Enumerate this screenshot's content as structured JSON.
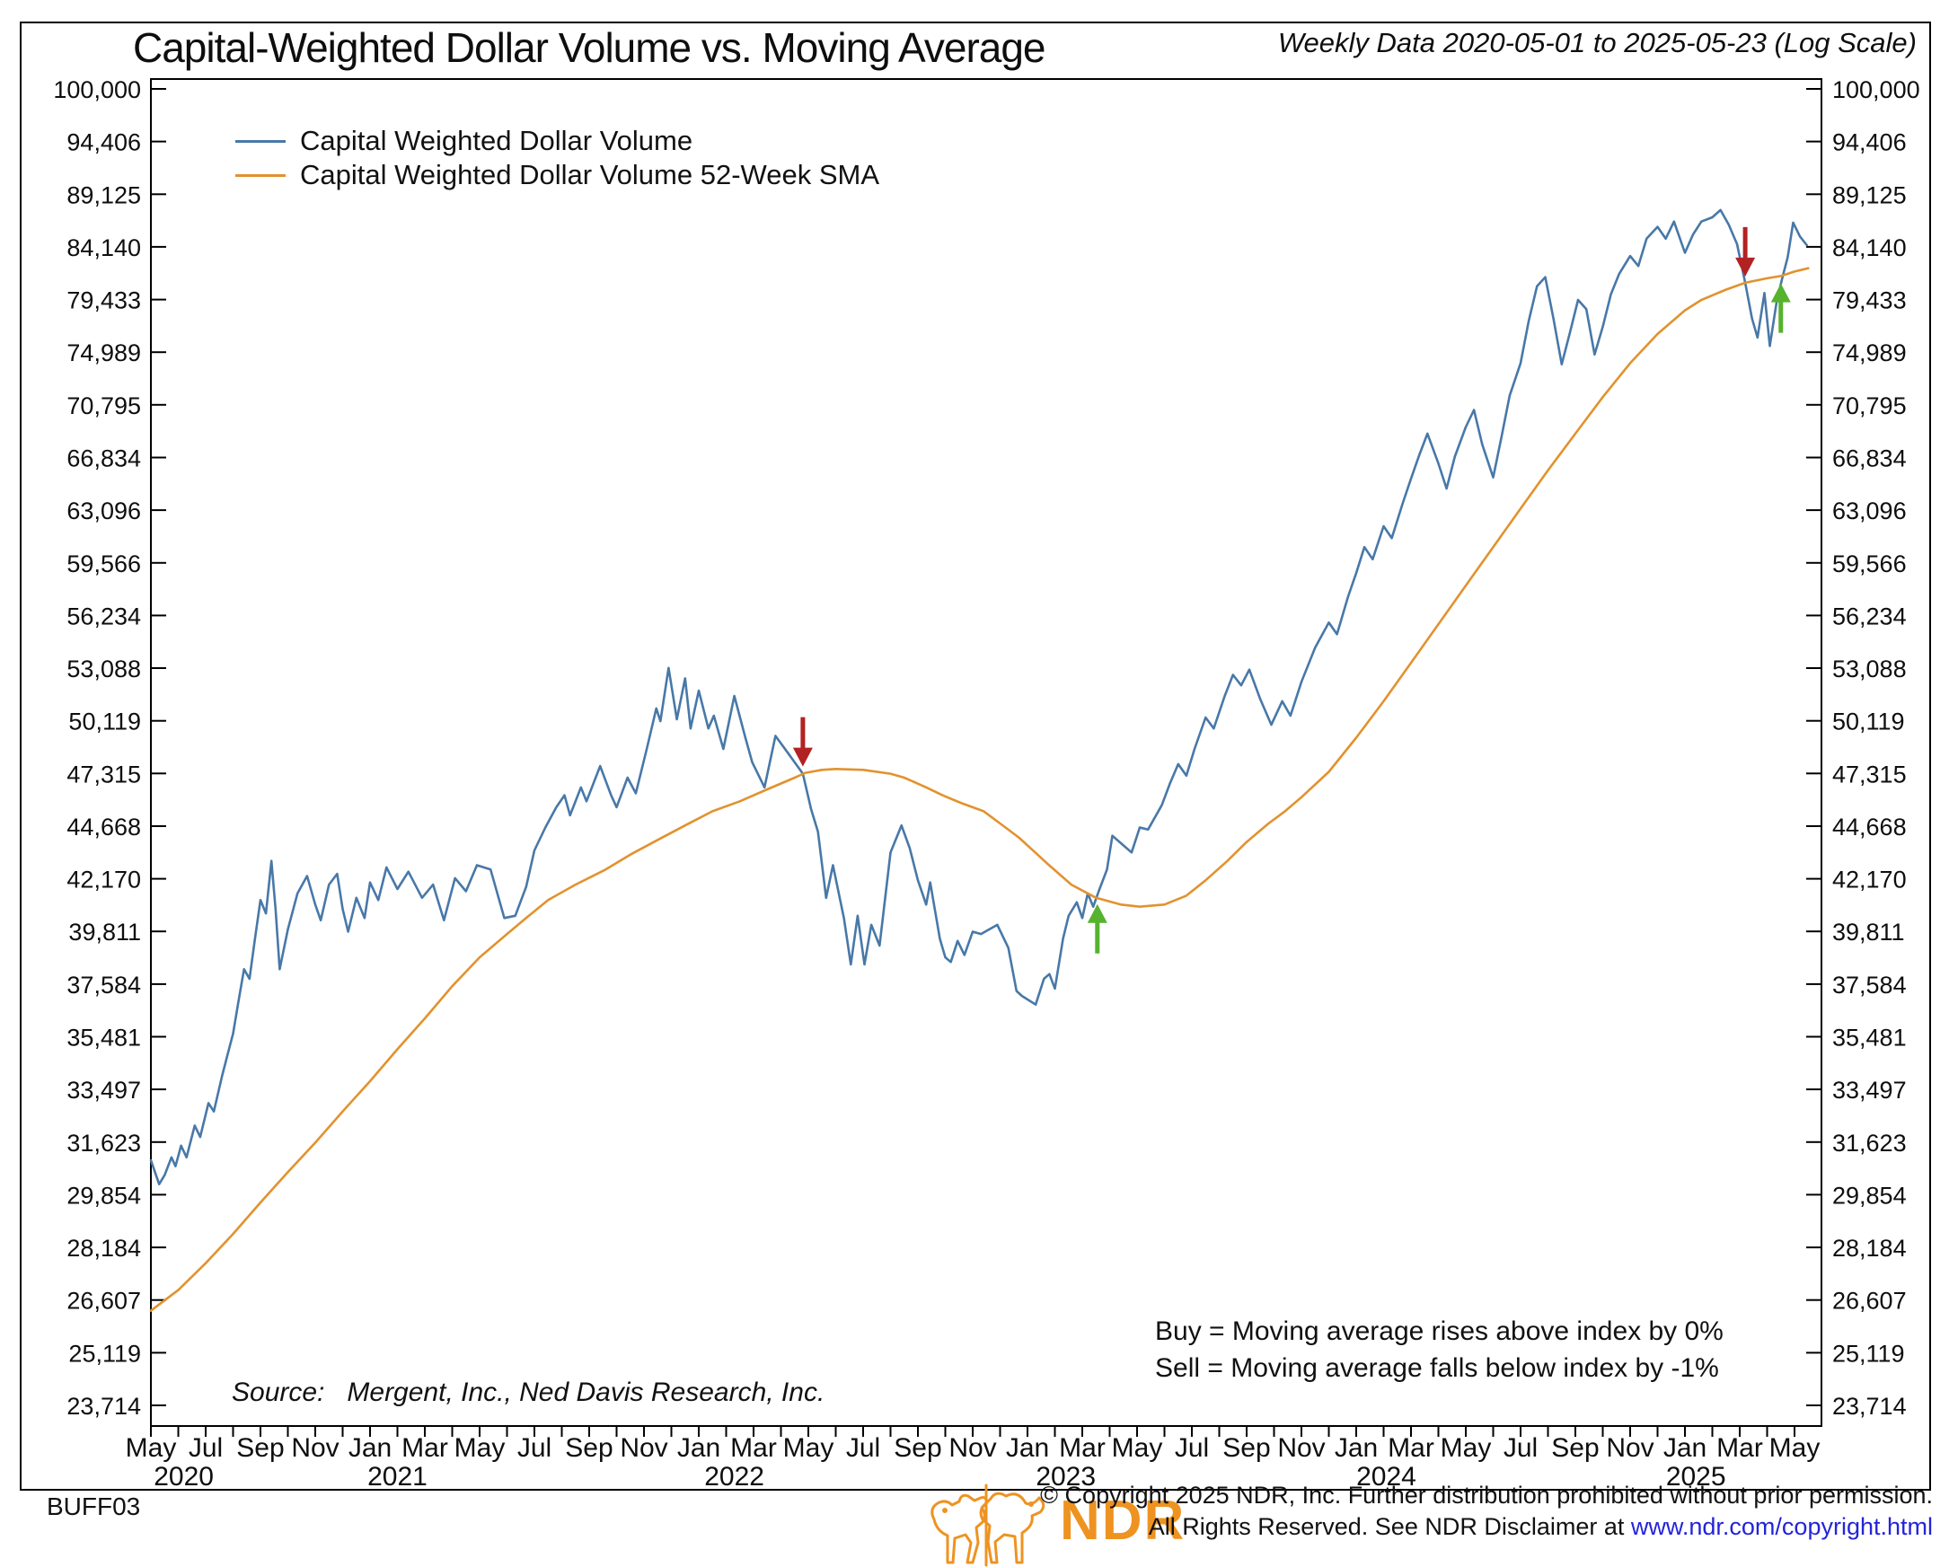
{
  "header": {
    "title": "Capital-Weighted Dollar Volume vs. Moving Average",
    "subtitle": "Weekly Data 2020-05-01 to 2025-05-23 (Log Scale)"
  },
  "annotations": {
    "buy_rule": "Buy = Moving average rises above index by 0%",
    "sell_rule": "Sell = Moving average falls below index by -1%",
    "source": "Source:   Mergent, Inc., Ned Davis Research, Inc."
  },
  "footer": {
    "chart_id": "BUFF03",
    "logo_text": "NDR",
    "copyright_line1": "© Copyright 2025 NDR, Inc. Further distribution prohibited without prior permission.",
    "copyright_line2_prefix": "All Rights Reserved. See NDR Disclaimer at ",
    "copyright_link": "www.ndr.com/copyright.html"
  },
  "colors": {
    "volume_line": "#4878a8",
    "sma_line": "#e2922e",
    "sell_arrow": "#b32222",
    "buy_arrow": "#55b32d",
    "logo_orange": "#ee9321",
    "link_blue": "#2424d9"
  },
  "chart_data": {
    "type": "line",
    "title": "Capital-Weighted Dollar Volume vs. Moving Average",
    "subtitle": "Weekly Data 2020-05-01 to 2025-05-23 (Log Scale)",
    "log_scale": true,
    "x_unit": "months since 2020-05-01",
    "x_range": [
      "2020-05-01",
      "2025-05-23"
    ],
    "grid": false,
    "legend_position": "top-left",
    "y_ticks": [
      100000,
      94406,
      89125,
      84140,
      79433,
      74989,
      70795,
      66834,
      63096,
      59566,
      56234,
      53088,
      50119,
      47315,
      44668,
      42170,
      39811,
      37584,
      35481,
      33497,
      31623,
      29854,
      28184,
      26607,
      25119,
      23714
    ],
    "x_month_labels": [
      "May",
      "Jul",
      "Sep",
      "Nov",
      "Jan",
      "Mar",
      "May",
      "Jul",
      "Sep",
      "Nov",
      "Jan",
      "Mar",
      "May",
      "Jul",
      "Sep",
      "Nov",
      "Jan",
      "Mar",
      "May",
      "Jul",
      "Sep",
      "Nov",
      "Jan",
      "Mar",
      "May",
      "Jul",
      "Sep",
      "Nov",
      "Jan",
      "Mar",
      "May"
    ],
    "x_year_labels": [
      {
        "m": 1.2,
        "label": "2020"
      },
      {
        "m": 9.0,
        "label": "2021"
      },
      {
        "m": 21.3,
        "label": "2022"
      },
      {
        "m": 33.4,
        "label": "2023"
      },
      {
        "m": 45.1,
        "label": "2024"
      },
      {
        "m": 56.4,
        "label": "2025"
      }
    ],
    "series": [
      {
        "name": "Capital Weighted Dollar Volume",
        "color": "#4878a8",
        "points": [
          [
            0,
            31000
          ],
          [
            0.3,
            30200
          ],
          [
            0.5,
            30500
          ],
          [
            0.75,
            31100
          ],
          [
            0.9,
            30800
          ],
          [
            1.1,
            31500
          ],
          [
            1.3,
            31100
          ],
          [
            1.6,
            32200
          ],
          [
            1.8,
            31800
          ],
          [
            2.1,
            33000
          ],
          [
            2.3,
            32700
          ],
          [
            2.6,
            34000
          ],
          [
            2.8,
            34800
          ],
          [
            3.0,
            35600
          ],
          [
            3.2,
            36900
          ],
          [
            3.4,
            38200
          ],
          [
            3.6,
            37800
          ],
          [
            3.8,
            39500
          ],
          [
            4.0,
            41200
          ],
          [
            4.2,
            40600
          ],
          [
            4.4,
            43000
          ],
          [
            4.55,
            40800
          ],
          [
            4.7,
            38200
          ],
          [
            5.0,
            39900
          ],
          [
            5.35,
            41500
          ],
          [
            5.7,
            42300
          ],
          [
            6.0,
            41000
          ],
          [
            6.2,
            40300
          ],
          [
            6.5,
            41900
          ],
          [
            6.8,
            42400
          ],
          [
            7.0,
            40800
          ],
          [
            7.2,
            39800
          ],
          [
            7.5,
            41300
          ],
          [
            7.8,
            40400
          ],
          [
            8.0,
            42000
          ],
          [
            8.3,
            41200
          ],
          [
            8.6,
            42700
          ],
          [
            9.0,
            41700
          ],
          [
            9.4,
            42500
          ],
          [
            9.9,
            41300
          ],
          [
            10.3,
            41900
          ],
          [
            10.7,
            40300
          ],
          [
            11.1,
            42200
          ],
          [
            11.5,
            41600
          ],
          [
            11.9,
            42800
          ],
          [
            12.4,
            42600
          ],
          [
            12.9,
            40400
          ],
          [
            13.3,
            40500
          ],
          [
            13.7,
            41800
          ],
          [
            14.0,
            43500
          ],
          [
            14.4,
            44600
          ],
          [
            14.8,
            45600
          ],
          [
            15.1,
            46200
          ],
          [
            15.3,
            45200
          ],
          [
            15.7,
            46600
          ],
          [
            15.9,
            45900
          ],
          [
            16.4,
            47700
          ],
          [
            16.8,
            46200
          ],
          [
            17.0,
            45600
          ],
          [
            17.4,
            47100
          ],
          [
            17.7,
            46300
          ],
          [
            18.1,
            48600
          ],
          [
            18.45,
            50800
          ],
          [
            18.6,
            50100
          ],
          [
            18.9,
            53100
          ],
          [
            19.2,
            50200
          ],
          [
            19.5,
            52500
          ],
          [
            19.7,
            49700
          ],
          [
            20.0,
            51800
          ],
          [
            20.35,
            49700
          ],
          [
            20.55,
            50400
          ],
          [
            20.9,
            48600
          ],
          [
            21.3,
            51500
          ],
          [
            21.7,
            49200
          ],
          [
            21.95,
            47900
          ],
          [
            22.4,
            46600
          ],
          [
            22.8,
            49300
          ],
          [
            23.3,
            48300
          ],
          [
            23.8,
            47300
          ],
          [
            24.1,
            45500
          ],
          [
            24.35,
            44400
          ],
          [
            24.65,
            41300
          ],
          [
            24.9,
            42800
          ],
          [
            25.3,
            40400
          ],
          [
            25.55,
            38400
          ],
          [
            25.8,
            40500
          ],
          [
            26.05,
            38400
          ],
          [
            26.3,
            40100
          ],
          [
            26.6,
            39200
          ],
          [
            27.0,
            43400
          ],
          [
            27.4,
            44700
          ],
          [
            27.7,
            43600
          ],
          [
            28.0,
            42100
          ],
          [
            28.3,
            41000
          ],
          [
            28.45,
            42000
          ],
          [
            28.8,
            39500
          ],
          [
            29.0,
            38700
          ],
          [
            29.2,
            38500
          ],
          [
            29.45,
            39400
          ],
          [
            29.7,
            38800
          ],
          [
            30.0,
            39800
          ],
          [
            30.3,
            39700
          ],
          [
            30.6,
            39900
          ],
          [
            30.9,
            40100
          ],
          [
            31.3,
            39100
          ],
          [
            31.6,
            37300
          ],
          [
            31.8,
            37100
          ],
          [
            32.3,
            36750
          ],
          [
            32.6,
            37800
          ],
          [
            32.8,
            38000
          ],
          [
            33.0,
            37400
          ],
          [
            33.3,
            39500
          ],
          [
            33.5,
            40500
          ],
          [
            33.8,
            41100
          ],
          [
            34.0,
            40400
          ],
          [
            34.2,
            41500
          ],
          [
            34.4,
            40900
          ],
          [
            34.6,
            41600
          ],
          [
            34.9,
            42600
          ],
          [
            35.1,
            44200
          ],
          [
            35.45,
            43800
          ],
          [
            35.8,
            43400
          ],
          [
            36.1,
            44600
          ],
          [
            36.4,
            44500
          ],
          [
            36.9,
            45700
          ],
          [
            37.2,
            46800
          ],
          [
            37.5,
            47800
          ],
          [
            37.8,
            47200
          ],
          [
            38.1,
            48600
          ],
          [
            38.5,
            50300
          ],
          [
            38.8,
            49700
          ],
          [
            39.2,
            51500
          ],
          [
            39.5,
            52700
          ],
          [
            39.8,
            52100
          ],
          [
            40.1,
            53000
          ],
          [
            40.5,
            51300
          ],
          [
            40.9,
            49900
          ],
          [
            41.3,
            51200
          ],
          [
            41.6,
            50400
          ],
          [
            42.0,
            52300
          ],
          [
            42.5,
            54300
          ],
          [
            43.0,
            55800
          ],
          [
            43.3,
            55100
          ],
          [
            43.7,
            57400
          ],
          [
            44.0,
            58900
          ],
          [
            44.3,
            60600
          ],
          [
            44.6,
            59800
          ],
          [
            45.0,
            62000
          ],
          [
            45.3,
            61200
          ],
          [
            45.7,
            63600
          ],
          [
            46.0,
            65300
          ],
          [
            46.3,
            67000
          ],
          [
            46.6,
            68600
          ],
          [
            47.0,
            66400
          ],
          [
            47.3,
            64600
          ],
          [
            47.6,
            66900
          ],
          [
            48.0,
            69100
          ],
          [
            48.3,
            70400
          ],
          [
            48.6,
            67800
          ],
          [
            49.0,
            65400
          ],
          [
            49.3,
            68300
          ],
          [
            49.6,
            71500
          ],
          [
            50.0,
            74100
          ],
          [
            50.3,
            77600
          ],
          [
            50.6,
            80600
          ],
          [
            50.9,
            81400
          ],
          [
            51.2,
            77800
          ],
          [
            51.5,
            74000
          ],
          [
            51.8,
            76600
          ],
          [
            52.1,
            79400
          ],
          [
            52.4,
            78600
          ],
          [
            52.7,
            74800
          ],
          [
            53.0,
            77100
          ],
          [
            53.3,
            79900
          ],
          [
            53.6,
            81700
          ],
          [
            54.0,
            83300
          ],
          [
            54.3,
            82400
          ],
          [
            54.6,
            84900
          ],
          [
            55.0,
            86000
          ],
          [
            55.3,
            84900
          ],
          [
            55.6,
            86500
          ],
          [
            56.0,
            83600
          ],
          [
            56.3,
            85300
          ],
          [
            56.6,
            86500
          ],
          [
            57.0,
            86900
          ],
          [
            57.3,
            87600
          ],
          [
            57.6,
            86200
          ],
          [
            57.9,
            84400
          ],
          [
            58.2,
            80900
          ],
          [
            58.45,
            77800
          ],
          [
            58.65,
            76200
          ],
          [
            58.9,
            80000
          ],
          [
            59.1,
            75500
          ],
          [
            59.35,
            79300
          ],
          [
            59.55,
            81300
          ],
          [
            59.75,
            83200
          ],
          [
            59.95,
            86400
          ],
          [
            60.2,
            85100
          ],
          [
            60.45,
            84300
          ]
        ]
      },
      {
        "name": "Capital Weighted Dollar Volume 52-Week SMA",
        "color": "#e2922e",
        "points": [
          [
            0,
            26300
          ],
          [
            1,
            26900
          ],
          [
            2,
            27700
          ],
          [
            3,
            28600
          ],
          [
            4,
            29600
          ],
          [
            5,
            30600
          ],
          [
            6,
            31600
          ],
          [
            7,
            32700
          ],
          [
            8,
            33800
          ],
          [
            9,
            35000
          ],
          [
            10,
            36200
          ],
          [
            11,
            37500
          ],
          [
            12,
            38700
          ],
          [
            13,
            39700
          ],
          [
            13.7,
            40400
          ],
          [
            14.5,
            41200
          ],
          [
            15.5,
            41900
          ],
          [
            16.6,
            42600
          ],
          [
            17.5,
            43300
          ],
          [
            18.5,
            44000
          ],
          [
            19.5,
            44700
          ],
          [
            20.5,
            45400
          ],
          [
            21.5,
            45900
          ],
          [
            22.5,
            46500
          ],
          [
            23.5,
            47100
          ],
          [
            23.9,
            47350
          ],
          [
            24.5,
            47500
          ],
          [
            25,
            47550
          ],
          [
            26,
            47500
          ],
          [
            27,
            47300
          ],
          [
            27.5,
            47100
          ],
          [
            28.3,
            46600
          ],
          [
            28.9,
            46200
          ],
          [
            29.6,
            45800
          ],
          [
            30.4,
            45400
          ],
          [
            31,
            44800
          ],
          [
            31.7,
            44100
          ],
          [
            32.7,
            42900
          ],
          [
            33.6,
            41900
          ],
          [
            34.5,
            41300
          ],
          [
            35.4,
            41000
          ],
          [
            36.1,
            40900
          ],
          [
            37,
            41000
          ],
          [
            37.8,
            41400
          ],
          [
            38.5,
            42100
          ],
          [
            39.3,
            43000
          ],
          [
            40,
            43900
          ],
          [
            40.8,
            44800
          ],
          [
            41.4,
            45400
          ],
          [
            42,
            46100
          ],
          [
            43,
            47400
          ],
          [
            44,
            49200
          ],
          [
            45,
            51200
          ],
          [
            46,
            53400
          ],
          [
            47,
            55700
          ],
          [
            48,
            58100
          ],
          [
            49,
            60600
          ],
          [
            50,
            63200
          ],
          [
            51,
            65900
          ],
          [
            52,
            68600
          ],
          [
            53,
            71400
          ],
          [
            54,
            74100
          ],
          [
            55,
            76500
          ],
          [
            56,
            78500
          ],
          [
            56.6,
            79400
          ],
          [
            57.5,
            80300
          ],
          [
            58.2,
            80900
          ],
          [
            59,
            81300
          ],
          [
            59.5,
            81500
          ],
          [
            60,
            81900
          ],
          [
            60.5,
            82200
          ]
        ]
      }
    ],
    "signals": [
      {
        "type": "sell",
        "m": 23.8,
        "value": 47350,
        "color": "#b32222"
      },
      {
        "type": "buy",
        "m": 34.55,
        "value": 41300,
        "color": "#55b32d"
      },
      {
        "type": "sell",
        "m": 58.2,
        "value": 80900,
        "color": "#b32222"
      },
      {
        "type": "buy",
        "m": 59.5,
        "value": 81400,
        "color": "#55b32d"
      }
    ]
  }
}
